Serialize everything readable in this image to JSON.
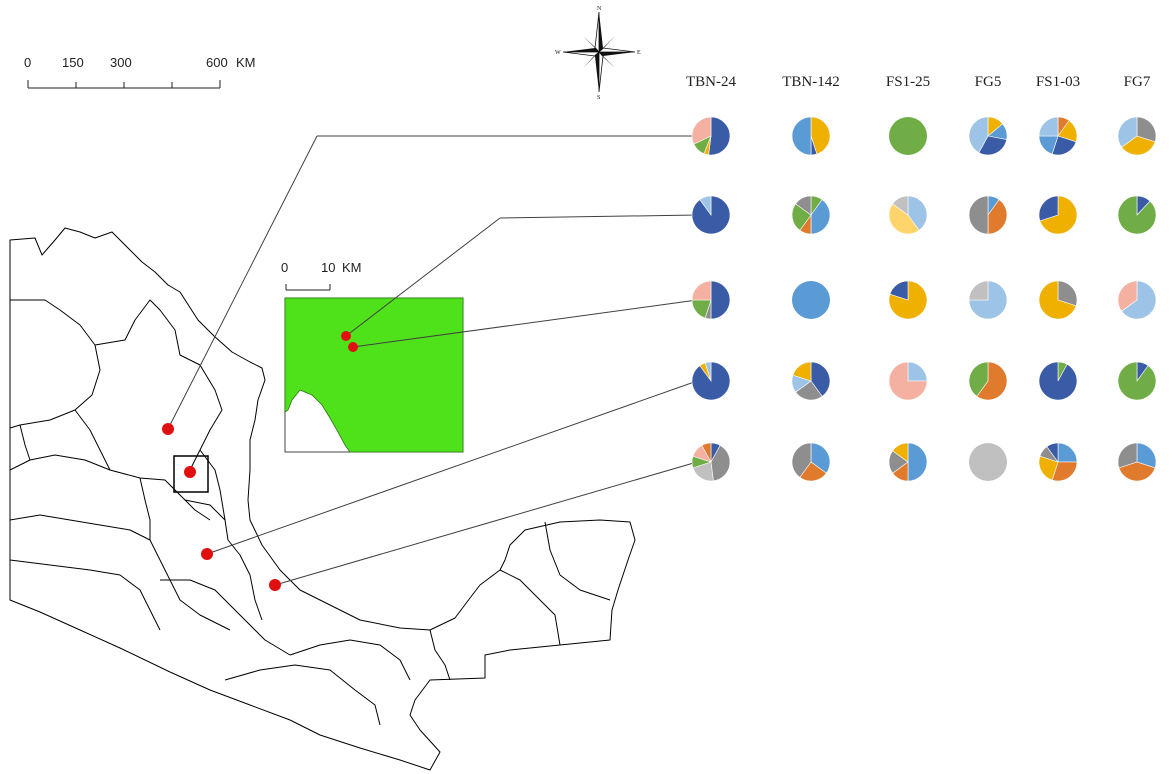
{
  "scale_bar": {
    "ticks": [
      "0",
      "150",
      "300",
      "600"
    ],
    "unit": "KM"
  },
  "inset_scale_bar": {
    "ticks": [
      "0",
      "10"
    ],
    "unit": "KM"
  },
  "compass": {
    "n": "N",
    "s": "S",
    "e": "E",
    "w": "W"
  },
  "colors": {
    "study_area": "#4fe21b",
    "site_marker": "#e01010",
    "coast_line": "#000000",
    "connector": "#404040"
  },
  "palette": {
    "dark_blue": "#3a5ba5",
    "mid_blue": "#5b9bd5",
    "light_blue": "#9dc3e6",
    "green": "#70ad47",
    "orange": "#e07b2e",
    "gold": "#f0b000",
    "gray": "#8e8e8e",
    "light_gray": "#c0c0c0",
    "salmon": "#f4b0a0",
    "light_gold": "#ffd56b"
  },
  "columns": [
    "TBN-24",
    "TBN-142",
    "FS1-25",
    "FG5",
    "FS1-03",
    "FG7"
  ],
  "rows": [
    [
      [
        {
          "c": "dark_blue",
          "v": 52
        },
        {
          "c": "gold",
          "v": 4
        },
        {
          "c": "green",
          "v": 12
        },
        {
          "c": "salmon",
          "v": 32
        }
      ],
      [
        {
          "c": "gold",
          "v": 45
        },
        {
          "c": "dark_blue",
          "v": 5
        },
        {
          "c": "mid_blue",
          "v": 50
        }
      ],
      [
        {
          "c": "green",
          "v": 100
        }
      ],
      [
        {
          "c": "gold",
          "v": 14
        },
        {
          "c": "mid_blue",
          "v": 14
        },
        {
          "c": "dark_blue",
          "v": 30
        },
        {
          "c": "light_blue",
          "v": 42
        }
      ],
      [
        {
          "c": "orange",
          "v": 10
        },
        {
          "c": "gold",
          "v": 20
        },
        {
          "c": "dark_blue",
          "v": 25
        },
        {
          "c": "mid_blue",
          "v": 20
        },
        {
          "c": "light_blue",
          "v": 25
        }
      ],
      [
        {
          "c": "gray",
          "v": 30
        },
        {
          "c": "gold",
          "v": 35
        },
        {
          "c": "light_blue",
          "v": 35
        }
      ]
    ],
    [
      [
        {
          "c": "dark_blue",
          "v": 90
        },
        {
          "c": "light_blue",
          "v": 10
        }
      ],
      [
        {
          "c": "green",
          "v": 10
        },
        {
          "c": "mid_blue",
          "v": 40
        },
        {
          "c": "orange",
          "v": 10
        },
        {
          "c": "green",
          "v": 25
        },
        {
          "c": "gray",
          "v": 15
        }
      ],
      [
        {
          "c": "light_blue",
          "v": 40
        },
        {
          "c": "light_gold",
          "v": 45
        },
        {
          "c": "light_gray",
          "v": 15
        }
      ],
      [
        {
          "c": "mid_blue",
          "v": 10
        },
        {
          "c": "orange",
          "v": 40
        },
        {
          "c": "gray",
          "v": 50
        }
      ],
      [
        {
          "c": "gold",
          "v": 70
        },
        {
          "c": "dark_blue",
          "v": 30
        }
      ],
      [
        {
          "c": "dark_blue",
          "v": 12
        },
        {
          "c": "green",
          "v": 88
        }
      ]
    ],
    [
      [
        {
          "c": "dark_blue",
          "v": 50
        },
        {
          "c": "gray",
          "v": 5
        },
        {
          "c": "green",
          "v": 20
        },
        {
          "c": "salmon",
          "v": 25
        }
      ],
      [
        {
          "c": "mid_blue",
          "v": 100
        }
      ],
      [
        {
          "c": "gold",
          "v": 80
        },
        {
          "c": "dark_blue",
          "v": 20
        }
      ],
      [
        {
          "c": "light_blue",
          "v": 75
        },
        {
          "c": "light_gray",
          "v": 25
        }
      ],
      [
        {
          "c": "gray",
          "v": 30
        },
        {
          "c": "gold",
          "v": 70
        }
      ],
      [
        {
          "c": "light_blue",
          "v": 65
        },
        {
          "c": "salmon",
          "v": 35
        }
      ]
    ],
    [
      [
        {
          "c": "dark_blue",
          "v": 90
        },
        {
          "c": "gold",
          "v": 5
        },
        {
          "c": "light_blue",
          "v": 5
        }
      ],
      [
        {
          "c": "dark_blue",
          "v": 40
        },
        {
          "c": "gray",
          "v": 25
        },
        {
          "c": "light_blue",
          "v": 15
        },
        {
          "c": "gold",
          "v": 20
        }
      ],
      [
        {
          "c": "light_blue",
          "v": 25
        },
        {
          "c": "salmon",
          "v": 75
        }
      ],
      [
        {
          "c": "orange",
          "v": 60
        },
        {
          "c": "green",
          "v": 40
        }
      ],
      [
        {
          "c": "green",
          "v": 8
        },
        {
          "c": "dark_blue",
          "v": 92
        }
      ],
      [
        {
          "c": "dark_blue",
          "v": 10
        },
        {
          "c": "green",
          "v": 90
        }
      ]
    ],
    [
      [
        {
          "c": "dark_blue",
          "v": 8
        },
        {
          "c": "gray",
          "v": 40
        },
        {
          "c": "light_gray",
          "v": 22
        },
        {
          "c": "green",
          "v": 10
        },
        {
          "c": "salmon",
          "v": 12
        },
        {
          "c": "orange",
          "v": 8
        }
      ],
      [
        {
          "c": "mid_blue",
          "v": 35
        },
        {
          "c": "orange",
          "v": 25
        },
        {
          "c": "gray",
          "v": 40
        }
      ],
      [
        {
          "c": "mid_blue",
          "v": 50
        },
        {
          "c": "orange",
          "v": 15
        },
        {
          "c": "gray",
          "v": 20
        },
        {
          "c": "gold",
          "v": 15
        }
      ],
      [
        {
          "c": "light_gray",
          "v": 100
        }
      ],
      [
        {
          "c": "mid_blue",
          "v": 25
        },
        {
          "c": "orange",
          "v": 30
        },
        {
          "c": "gold",
          "v": 25
        },
        {
          "c": "gray",
          "v": 10
        },
        {
          "c": "dark_blue",
          "v": 10
        }
      ],
      [
        {
          "c": "mid_blue",
          "v": 30
        },
        {
          "c": "orange",
          "v": 40
        },
        {
          "c": "gray",
          "v": 30
        }
      ]
    ]
  ]
}
